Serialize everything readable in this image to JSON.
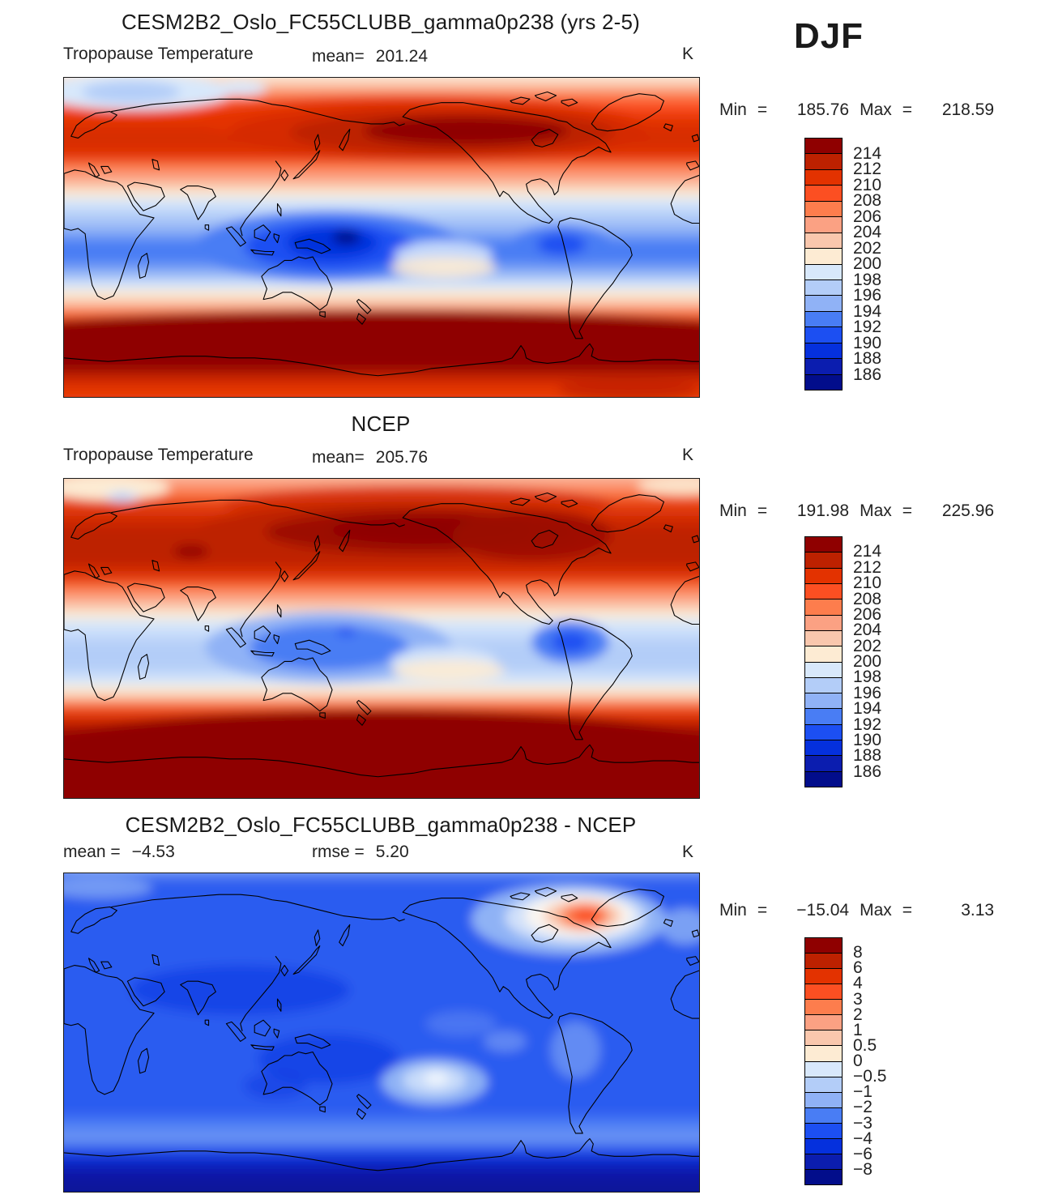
{
  "header": {
    "season": "DJF"
  },
  "panels": [
    {
      "title": "CESM2B2_Oslo_FC55CLUBB_gamma0p238 (yrs 2-5)",
      "field": "Tropopause Temperature",
      "mean_label": "mean=",
      "mean": "201.24",
      "units": "K",
      "min_label": "Min",
      "max_label": "Max",
      "equals": "=",
      "min": "185.76",
      "max": "218.59",
      "colorbar": {
        "labels": [
          "214",
          "212",
          "210",
          "208",
          "206",
          "204",
          "202",
          "200",
          "198",
          "196",
          "194",
          "192",
          "190",
          "188",
          "186"
        ],
        "colors": [
          "#8f0000",
          "#bd2100",
          "#e33200",
          "#fc4f22",
          "#fd7d4d",
          "#fba183",
          "#f9c7ad",
          "#fdebd3",
          "#d8e8fb",
          "#b3cdf8",
          "#90b2f6",
          "#497df4",
          "#1c4ff2",
          "#0530dd",
          "#0b1daf",
          "#020d8b"
        ]
      }
    },
    {
      "title": "NCEP",
      "field": "Tropopause Temperature",
      "mean_label": "mean=",
      "mean": "205.76",
      "units": "K",
      "min_label": "Min",
      "max_label": "Max",
      "equals": "=",
      "min": "191.98",
      "max": "225.96",
      "colorbar": {
        "labels": [
          "214",
          "212",
          "210",
          "208",
          "206",
          "204",
          "202",
          "200",
          "198",
          "196",
          "194",
          "192",
          "190",
          "188",
          "186"
        ],
        "colors": [
          "#8f0000",
          "#bd2100",
          "#e33200",
          "#fc4f22",
          "#fd7d4d",
          "#fba183",
          "#f9c7ad",
          "#fdebd3",
          "#d8e8fb",
          "#b3cdf8",
          "#90b2f6",
          "#497df4",
          "#1c4ff2",
          "#0530dd",
          "#0b1daf",
          "#020d8b"
        ]
      }
    },
    {
      "title": "CESM2B2_Oslo_FC55CLUBB_gamma0p238 - NCEP",
      "mean_label": "mean =",
      "mean": "−4.53",
      "rmse_label": "rmse =",
      "rmse": "5.20",
      "units": "K",
      "min_label": "Min",
      "max_label": "Max",
      "equals": "=",
      "min": "−15.04",
      "max": "3.13",
      "colorbar": {
        "labels": [
          "8",
          "6",
          "4",
          "3",
          "2",
          "1",
          "0.5",
          "0",
          "−0.5",
          "−1",
          "−2",
          "−3",
          "−4",
          "−6",
          "−8"
        ],
        "colors": [
          "#8f0000",
          "#bd2100",
          "#e33200",
          "#fc4f22",
          "#fd7d4d",
          "#fba183",
          "#f9c7ad",
          "#fdebd3",
          "#d8e8fb",
          "#b3cdf8",
          "#90b2f6",
          "#497df4",
          "#1c4ff2",
          "#0530dd",
          "#0b1daf",
          "#020d8b"
        ]
      }
    }
  ],
  "chart_data": [
    {
      "type": "heatmap",
      "subtype": "filled-contour-global-map",
      "title": "CESM2B2_Oslo_FC55CLUBB_gamma0p238 (yrs 2-5)",
      "variable": "Tropopause Temperature",
      "season": "DJF",
      "units": "K",
      "stats": {
        "mean": 201.24,
        "min": 185.76,
        "max": 218.59
      },
      "contour_levels": [
        186,
        188,
        190,
        192,
        194,
        196,
        198,
        200,
        202,
        204,
        206,
        208,
        210,
        212,
        214
      ],
      "palette_low_to_high": [
        "#020d8b",
        "#0b1daf",
        "#0530dd",
        "#1c4ff2",
        "#497df4",
        "#90b2f6",
        "#b3cdf8",
        "#d8e8fb",
        "#fdebd3",
        "#f9c7ad",
        "#fba183",
        "#fd7d4d",
        "#fc4f22",
        "#e33200",
        "#bd2100",
        "#8f0000"
      ],
      "projection": "global cylindrical lat-lon, 0–360E (Pacific-centered), coastlines overlaid",
      "pattern": "warm (>206 K) zonal bands in both mid-latitude belts with darkest red (>214 K) over North Pacific/North America and the 50–65S belt; cold (<200 K) tropical belt with minimum (<186 K) over the Maritime Continent and a secondary cold core over tropical South America; pale-blue cool patch over the Arctic near Scandinavia"
    },
    {
      "type": "heatmap",
      "subtype": "filled-contour-global-map",
      "title": "NCEP",
      "variable": "Tropopause Temperature",
      "season": "DJF",
      "units": "K",
      "stats": {
        "mean": 205.76,
        "min": 191.98,
        "max": 225.96
      },
      "contour_levels": [
        186,
        188,
        190,
        192,
        194,
        196,
        198,
        200,
        202,
        204,
        206,
        208,
        210,
        212,
        214
      ],
      "palette_low_to_high": [
        "#020d8b",
        "#0b1daf",
        "#0530dd",
        "#1c4ff2",
        "#497df4",
        "#90b2f6",
        "#b3cdf8",
        "#d8e8fb",
        "#fdebd3",
        "#f9c7ad",
        "#fba183",
        "#fd7d4d",
        "#fc4f22",
        "#e33200",
        "#bd2100",
        "#8f0000"
      ],
      "projection": "global cylindrical lat-lon, 0–360E (Pacific-centered), coastlines overlaid",
      "pattern": "very warm (>214 K) northern belt spanning North Pacific to North Atlantic; moderate tropical cool belt (194–200 K) with cores near the Maritime Continent and South America; entire southern high-latitude region saturated dark red (>214 K)"
    },
    {
      "type": "heatmap",
      "subtype": "filled-contour-global-difference-map",
      "title": "CESM2B2_Oslo_FC55CLUBB_gamma0p238 - NCEP",
      "variable": "Tropopause Temperature difference",
      "season": "DJF",
      "units": "K",
      "stats": {
        "mean": -4.53,
        "rmse": 5.2,
        "min": -15.04,
        "max": 3.13
      },
      "contour_levels": [
        -8,
        -6,
        -4,
        -3,
        -2,
        -1,
        -0.5,
        0,
        0.5,
        1,
        2,
        3,
        4,
        6,
        8
      ],
      "palette_low_to_high": [
        "#020d8b",
        "#0b1daf",
        "#0530dd",
        "#1c4ff2",
        "#497df4",
        "#90b2f6",
        "#b3cdf8",
        "#d8e8fb",
        "#fdebd3",
        "#f9c7ad",
        "#fba183",
        "#fd7d4d",
        "#fc4f22",
        "#e33200",
        "#bd2100",
        "#8f0000"
      ],
      "projection": "global cylindrical lat-lon, 0–360E (Pacific-centered), coastlines overlaid",
      "pattern": "negative bias (blue, mostly -2 to -4 K) almost everywhere; strongest negative band (<-8 K) along Antarctica; darker -4 K patches over central/east Asia and the Maritime Continent; positive anomaly (up to +3 K, orange) centered over Greenland/Baffin Bay surrounded by near-zero white ring; near-zero pale patch in the South Pacific"
    }
  ]
}
